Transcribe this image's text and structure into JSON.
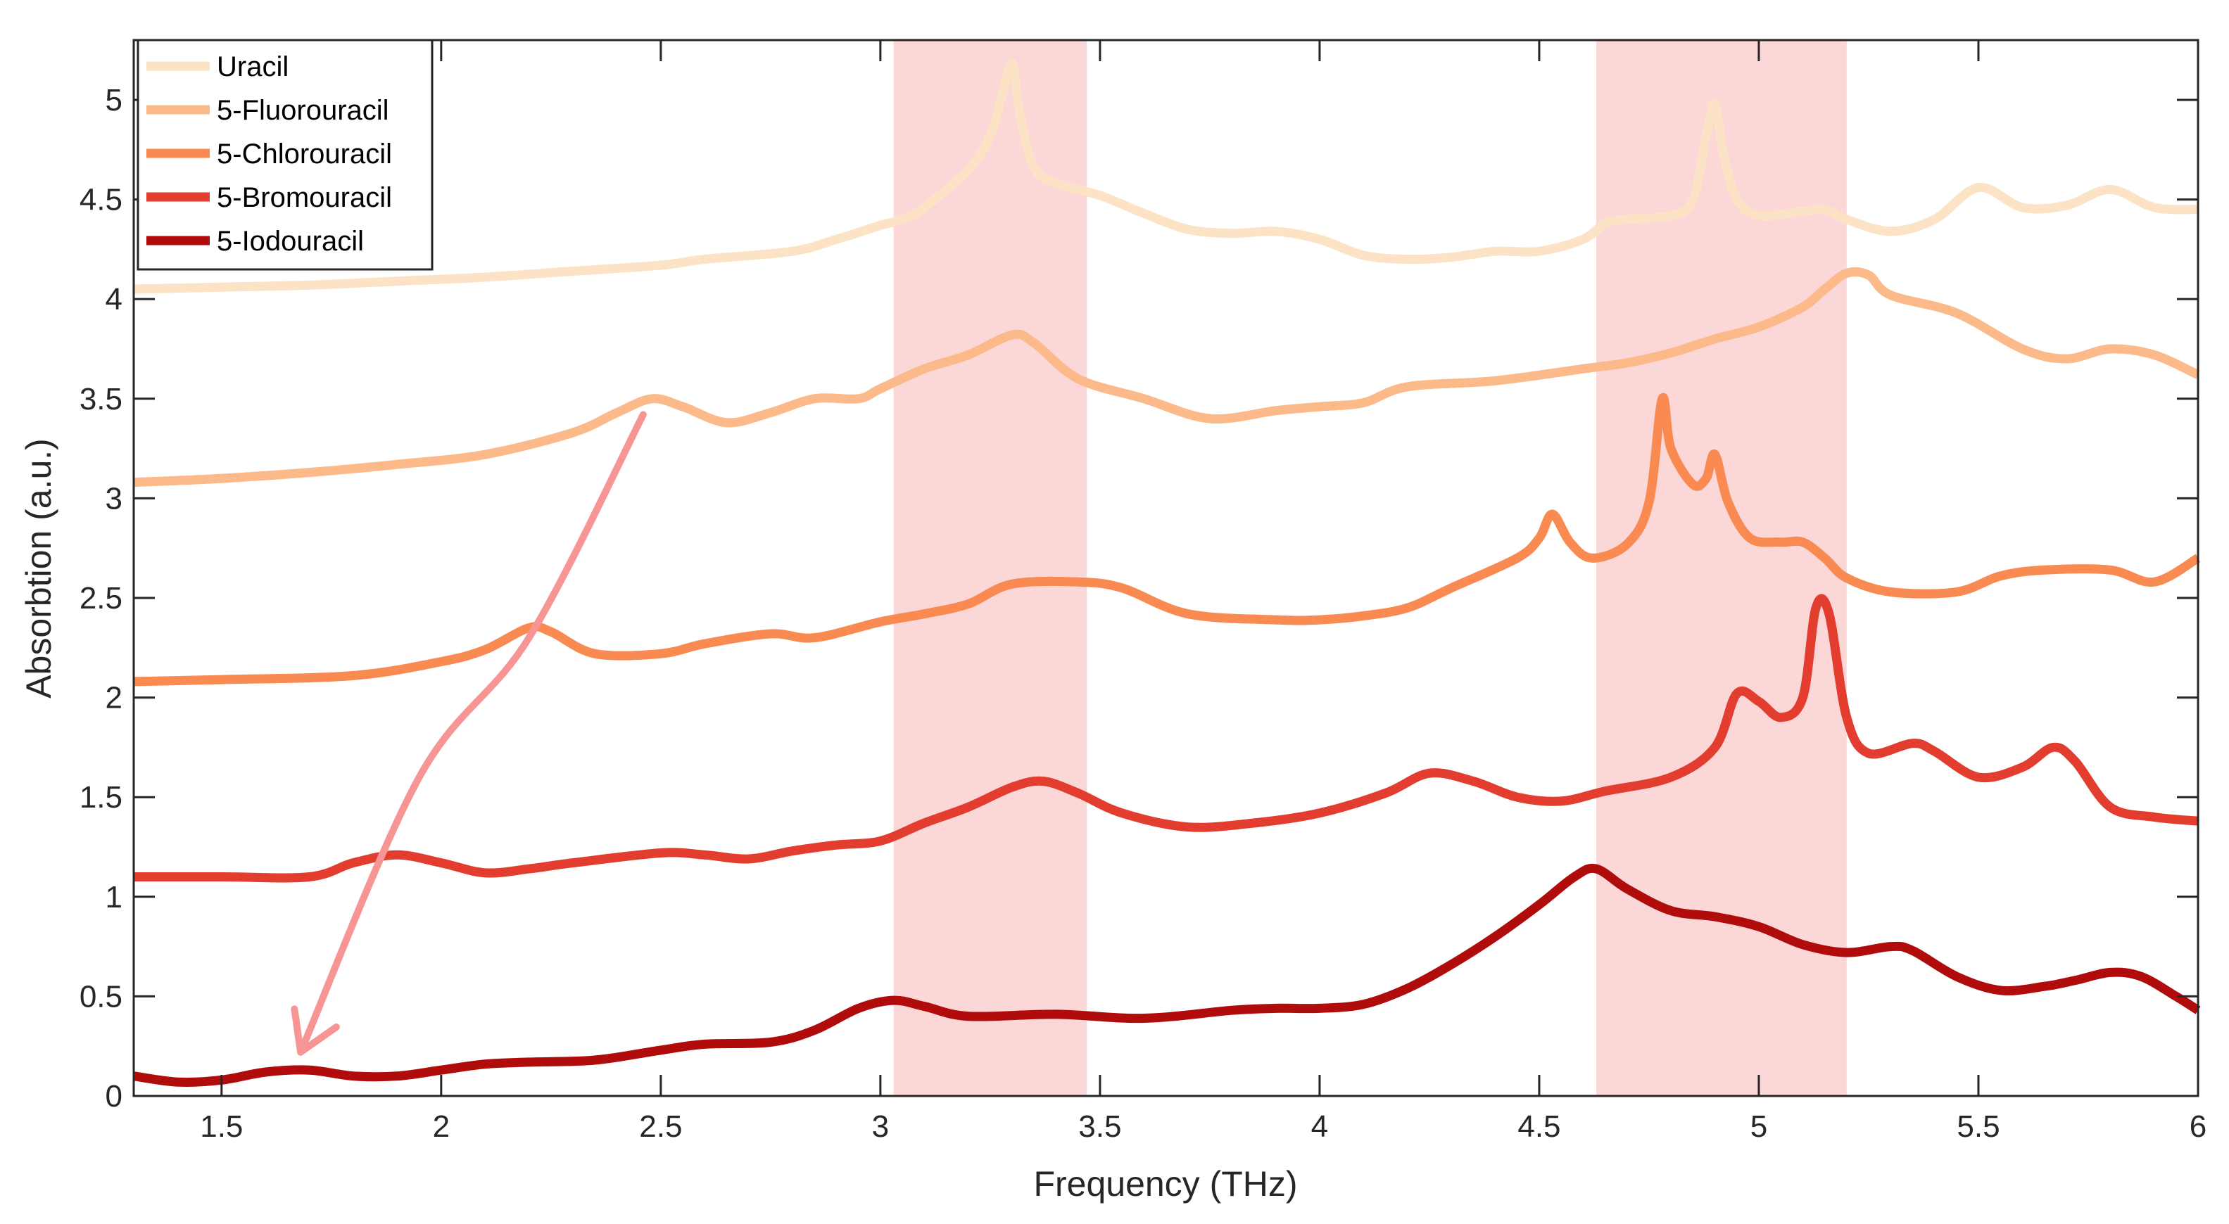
{
  "chart_data": {
    "type": "line",
    "title": "",
    "xlabel": "Frequency (THz)",
    "ylabel": "Absorbtion (a.u.)",
    "xlim": [
      1.3,
      6.0
    ],
    "ylim": [
      0,
      5.3
    ],
    "xticks": [
      1.5,
      2,
      2.5,
      3,
      3.5,
      4,
      4.5,
      5,
      5.5,
      6
    ],
    "xtick_labels": [
      "1.5",
      "2",
      "2.5",
      "3",
      "3.5",
      "4",
      "4.5",
      "5",
      "5.5",
      "6"
    ],
    "yticks": [
      0,
      0.5,
      1,
      1.5,
      2,
      2.5,
      3,
      3.5,
      4,
      4.5,
      5
    ],
    "ytick_labels": [
      "0",
      "0.5",
      "1",
      "1.5",
      "2",
      "2.5",
      "3",
      "3.5",
      "4",
      "4.5",
      "5"
    ],
    "grid": false,
    "legend_position": "top-left",
    "highlight_bands": [
      {
        "x0": 3.03,
        "x1": 3.47,
        "color": "#fcd7d7"
      },
      {
        "x0": 4.63,
        "x1": 5.2,
        "color": "#fcd7d7"
      }
    ],
    "annotation_arrow": {
      "color": "#f79595",
      "from": [
        2.46,
        3.42
      ],
      "through": [
        [
          2.2,
          2.3
        ],
        [
          1.95,
          1.6
        ]
      ],
      "to": [
        1.68,
        0.22
      ]
    },
    "series": [
      {
        "name": "Uracil",
        "color": "#fde3c6",
        "points": [
          [
            1.3,
            4.05
          ],
          [
            1.5,
            4.06
          ],
          [
            1.7,
            4.07
          ],
          [
            1.9,
            4.09
          ],
          [
            2.1,
            4.11
          ],
          [
            2.3,
            4.14
          ],
          [
            2.5,
            4.17
          ],
          [
            2.6,
            4.2
          ],
          [
            2.8,
            4.24
          ],
          [
            2.9,
            4.3
          ],
          [
            3.0,
            4.37
          ],
          [
            3.05,
            4.4
          ],
          [
            3.1,
            4.46
          ],
          [
            3.2,
            4.65
          ],
          [
            3.25,
            4.82
          ],
          [
            3.28,
            5.05
          ],
          [
            3.3,
            5.18
          ],
          [
            3.32,
            4.9
          ],
          [
            3.35,
            4.66
          ],
          [
            3.4,
            4.58
          ],
          [
            3.5,
            4.52
          ],
          [
            3.6,
            4.43
          ],
          [
            3.7,
            4.35
          ],
          [
            3.8,
            4.33
          ],
          [
            3.9,
            4.34
          ],
          [
            4.0,
            4.3
          ],
          [
            4.1,
            4.22
          ],
          [
            4.2,
            4.2
          ],
          [
            4.3,
            4.21
          ],
          [
            4.4,
            4.24
          ],
          [
            4.5,
            4.24
          ],
          [
            4.6,
            4.3
          ],
          [
            4.65,
            4.38
          ],
          [
            4.7,
            4.4
          ],
          [
            4.8,
            4.42
          ],
          [
            4.85,
            4.5
          ],
          [
            4.88,
            4.82
          ],
          [
            4.9,
            4.98
          ],
          [
            4.92,
            4.72
          ],
          [
            4.95,
            4.5
          ],
          [
            5.0,
            4.42
          ],
          [
            5.1,
            4.44
          ],
          [
            5.15,
            4.45
          ],
          [
            5.2,
            4.4
          ],
          [
            5.3,
            4.34
          ],
          [
            5.4,
            4.4
          ],
          [
            5.5,
            4.56
          ],
          [
            5.6,
            4.46
          ],
          [
            5.7,
            4.47
          ],
          [
            5.8,
            4.55
          ],
          [
            5.9,
            4.46
          ],
          [
            6.0,
            4.45
          ]
        ]
      },
      {
        "name": "5-Fluorouracil",
        "color": "#fcb98a",
        "points": [
          [
            1.3,
            3.08
          ],
          [
            1.5,
            3.1
          ],
          [
            1.7,
            3.13
          ],
          [
            1.9,
            3.17
          ],
          [
            2.1,
            3.22
          ],
          [
            2.3,
            3.33
          ],
          [
            2.4,
            3.43
          ],
          [
            2.48,
            3.5
          ],
          [
            2.55,
            3.46
          ],
          [
            2.65,
            3.38
          ],
          [
            2.75,
            3.43
          ],
          [
            2.85,
            3.5
          ],
          [
            2.95,
            3.5
          ],
          [
            3.0,
            3.55
          ],
          [
            3.1,
            3.65
          ],
          [
            3.2,
            3.72
          ],
          [
            3.3,
            3.82
          ],
          [
            3.35,
            3.78
          ],
          [
            3.45,
            3.6
          ],
          [
            3.6,
            3.5
          ],
          [
            3.75,
            3.4
          ],
          [
            3.9,
            3.44
          ],
          [
            4.0,
            3.46
          ],
          [
            4.1,
            3.48
          ],
          [
            4.2,
            3.56
          ],
          [
            4.4,
            3.59
          ],
          [
            4.6,
            3.65
          ],
          [
            4.7,
            3.68
          ],
          [
            4.8,
            3.73
          ],
          [
            4.9,
            3.8
          ],
          [
            5.0,
            3.86
          ],
          [
            5.1,
            3.96
          ],
          [
            5.15,
            4.05
          ],
          [
            5.2,
            4.13
          ],
          [
            5.25,
            4.12
          ],
          [
            5.3,
            4.02
          ],
          [
            5.45,
            3.93
          ],
          [
            5.6,
            3.75
          ],
          [
            5.7,
            3.7
          ],
          [
            5.8,
            3.75
          ],
          [
            5.9,
            3.72
          ],
          [
            6.0,
            3.62
          ]
        ]
      },
      {
        "name": "5-Chlorouracil",
        "color": "#f98a52",
        "points": [
          [
            1.3,
            2.08
          ],
          [
            1.5,
            2.09
          ],
          [
            1.8,
            2.11
          ],
          [
            2.0,
            2.18
          ],
          [
            2.1,
            2.24
          ],
          [
            2.2,
            2.35
          ],
          [
            2.25,
            2.33
          ],
          [
            2.35,
            2.22
          ],
          [
            2.5,
            2.22
          ],
          [
            2.6,
            2.27
          ],
          [
            2.75,
            2.32
          ],
          [
            2.85,
            2.3
          ],
          [
            3.0,
            2.38
          ],
          [
            3.1,
            2.42
          ],
          [
            3.2,
            2.47
          ],
          [
            3.3,
            2.57
          ],
          [
            3.45,
            2.58
          ],
          [
            3.55,
            2.55
          ],
          [
            3.7,
            2.42
          ],
          [
            3.9,
            2.39
          ],
          [
            4.0,
            2.39
          ],
          [
            4.1,
            2.41
          ],
          [
            4.2,
            2.45
          ],
          [
            4.3,
            2.55
          ],
          [
            4.45,
            2.7
          ],
          [
            4.5,
            2.8
          ],
          [
            4.53,
            2.92
          ],
          [
            4.57,
            2.78
          ],
          [
            4.62,
            2.7
          ],
          [
            4.7,
            2.77
          ],
          [
            4.75,
            2.98
          ],
          [
            4.78,
            3.5
          ],
          [
            4.8,
            3.25
          ],
          [
            4.85,
            3.07
          ],
          [
            4.88,
            3.1
          ],
          [
            4.9,
            3.22
          ],
          [
            4.93,
            2.98
          ],
          [
            4.98,
            2.8
          ],
          [
            5.05,
            2.78
          ],
          [
            5.1,
            2.78
          ],
          [
            5.15,
            2.7
          ],
          [
            5.2,
            2.6
          ],
          [
            5.3,
            2.53
          ],
          [
            5.45,
            2.53
          ],
          [
            5.55,
            2.61
          ],
          [
            5.65,
            2.64
          ],
          [
            5.8,
            2.64
          ],
          [
            5.9,
            2.58
          ],
          [
            6.0,
            2.7
          ]
        ]
      },
      {
        "name": "5-Bromouracil",
        "color": "#e23d2e",
        "points": [
          [
            1.3,
            1.1
          ],
          [
            1.5,
            1.1
          ],
          [
            1.7,
            1.1
          ],
          [
            1.8,
            1.17
          ],
          [
            1.9,
            1.21
          ],
          [
            2.0,
            1.17
          ],
          [
            2.1,
            1.12
          ],
          [
            2.2,
            1.14
          ],
          [
            2.3,
            1.17
          ],
          [
            2.5,
            1.22
          ],
          [
            2.6,
            1.21
          ],
          [
            2.7,
            1.19
          ],
          [
            2.8,
            1.23
          ],
          [
            2.9,
            1.26
          ],
          [
            3.0,
            1.28
          ],
          [
            3.1,
            1.37
          ],
          [
            3.2,
            1.45
          ],
          [
            3.3,
            1.55
          ],
          [
            3.37,
            1.58
          ],
          [
            3.45,
            1.52
          ],
          [
            3.55,
            1.42
          ],
          [
            3.7,
            1.35
          ],
          [
            3.85,
            1.37
          ],
          [
            4.0,
            1.42
          ],
          [
            4.15,
            1.52
          ],
          [
            4.25,
            1.62
          ],
          [
            4.35,
            1.58
          ],
          [
            4.45,
            1.5
          ],
          [
            4.55,
            1.48
          ],
          [
            4.65,
            1.53
          ],
          [
            4.8,
            1.6
          ],
          [
            4.9,
            1.75
          ],
          [
            4.95,
            2.02
          ],
          [
            5.0,
            1.98
          ],
          [
            5.05,
            1.9
          ],
          [
            5.1,
            2.0
          ],
          [
            5.13,
            2.45
          ],
          [
            5.16,
            2.42
          ],
          [
            5.2,
            1.9
          ],
          [
            5.25,
            1.72
          ],
          [
            5.35,
            1.77
          ],
          [
            5.4,
            1.73
          ],
          [
            5.5,
            1.6
          ],
          [
            5.6,
            1.65
          ],
          [
            5.67,
            1.75
          ],
          [
            5.72,
            1.68
          ],
          [
            5.8,
            1.45
          ],
          [
            5.9,
            1.4
          ],
          [
            6.0,
            1.38
          ]
        ]
      },
      {
        "name": "5-Iodouracil",
        "color": "#b10c0c",
        "points": [
          [
            1.3,
            0.1
          ],
          [
            1.4,
            0.07
          ],
          [
            1.5,
            0.08
          ],
          [
            1.6,
            0.12
          ],
          [
            1.7,
            0.13
          ],
          [
            1.8,
            0.1
          ],
          [
            1.9,
            0.1
          ],
          [
            2.0,
            0.13
          ],
          [
            2.1,
            0.16
          ],
          [
            2.2,
            0.17
          ],
          [
            2.35,
            0.18
          ],
          [
            2.5,
            0.23
          ],
          [
            2.6,
            0.26
          ],
          [
            2.75,
            0.27
          ],
          [
            2.85,
            0.33
          ],
          [
            2.95,
            0.44
          ],
          [
            3.03,
            0.48
          ],
          [
            3.1,
            0.45
          ],
          [
            3.2,
            0.4
          ],
          [
            3.4,
            0.41
          ],
          [
            3.6,
            0.39
          ],
          [
            3.8,
            0.43
          ],
          [
            3.9,
            0.44
          ],
          [
            4.0,
            0.44
          ],
          [
            4.1,
            0.46
          ],
          [
            4.2,
            0.54
          ],
          [
            4.3,
            0.66
          ],
          [
            4.4,
            0.8
          ],
          [
            4.5,
            0.96
          ],
          [
            4.58,
            1.1
          ],
          [
            4.63,
            1.14
          ],
          [
            4.7,
            1.04
          ],
          [
            4.8,
            0.93
          ],
          [
            4.9,
            0.9
          ],
          [
            5.0,
            0.85
          ],
          [
            5.1,
            0.76
          ],
          [
            5.2,
            0.72
          ],
          [
            5.3,
            0.75
          ],
          [
            5.35,
            0.73
          ],
          [
            5.45,
            0.6
          ],
          [
            5.55,
            0.53
          ],
          [
            5.65,
            0.55
          ],
          [
            5.72,
            0.58
          ],
          [
            5.8,
            0.62
          ],
          [
            5.87,
            0.6
          ],
          [
            5.95,
            0.5
          ],
          [
            6.0,
            0.43
          ]
        ]
      }
    ]
  }
}
